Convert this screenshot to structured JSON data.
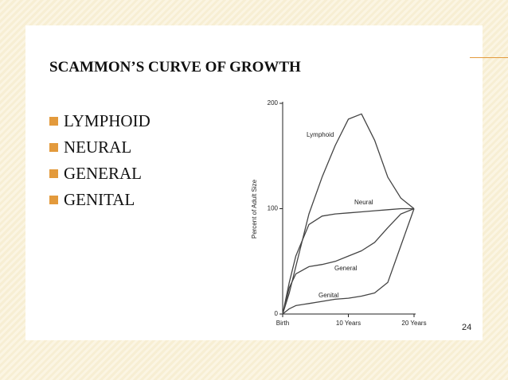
{
  "slide": {
    "title": "SCAMMON’S CURVE OF GROWTH",
    "bullets": [
      "LYMPHOID",
      "NEURAL",
      "GENERAL",
      "GENITAL"
    ],
    "page_number": "24"
  },
  "chart_data": {
    "type": "line",
    "ylabel": "Percent of Adult Size",
    "x": [
      0,
      1,
      2,
      4,
      6,
      8,
      10,
      12,
      14,
      16,
      18,
      20
    ],
    "xlim": [
      0,
      20
    ],
    "xticks": [
      {
        "value": 0,
        "label": "Birth"
      },
      {
        "value": 10,
        "label": "10 Years"
      },
      {
        "value": 20,
        "label": "20 Years"
      }
    ],
    "ylim": [
      0,
      200
    ],
    "yticks": [
      0,
      100,
      200
    ],
    "series": [
      {
        "name": "Lymphoid",
        "color": "#444444",
        "values": [
          0,
          20,
          45,
          95,
          130,
          160,
          185,
          190,
          165,
          130,
          110,
          100
        ]
      },
      {
        "name": "Neural",
        "color": "#444444",
        "values": [
          0,
          30,
          55,
          85,
          93,
          95,
          96,
          97,
          98,
          99,
          100,
          100
        ]
      },
      {
        "name": "General",
        "color": "#444444",
        "values": [
          0,
          25,
          38,
          45,
          47,
          50,
          55,
          60,
          68,
          82,
          95,
          100
        ]
      },
      {
        "name": "Genital",
        "color": "#444444",
        "values": [
          0,
          5,
          8,
          10,
          12,
          14,
          15,
          17,
          20,
          30,
          65,
          100
        ]
      }
    ]
  }
}
